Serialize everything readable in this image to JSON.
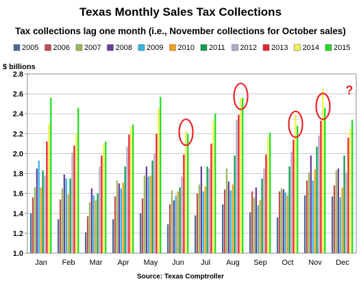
{
  "title": "Texas Monthly Sales Tax Collections",
  "subtitle": "Tax collections lag one month (i.e., November collections for October sales)",
  "source": "Source: Texas Comptroller",
  "ylabel": "$ billions",
  "annotation_mark": "?",
  "chart_data": {
    "type": "bar",
    "title": "Texas Monthly Sales Tax Collections",
    "subtitle": "Tax collections lag one month (i.e., November collections for October sales)",
    "ylabel": "$ billions",
    "xlabel": "",
    "ylim": [
      1.0,
      2.8
    ],
    "yticks": [
      "1.0",
      "1.2",
      "1.4",
      "1.6",
      "1.8",
      "2.0",
      "2.2",
      "2.4",
      "2.6",
      "2.8"
    ],
    "grid": true,
    "legend_placement": "top",
    "categories": [
      "Jan",
      "Feb",
      "Mar",
      "Apr",
      "May",
      "Jun",
      "Jul",
      "Aug",
      "Sep",
      "Oct",
      "Nov",
      "Dec"
    ],
    "series": [
      {
        "name": "2005",
        "color": "#4a6b96",
        "values": [
          1.4,
          1.34,
          1.21,
          1.34,
          1.4,
          1.29,
          1.38,
          1.49,
          1.41,
          1.36,
          1.58,
          1.57
        ]
      },
      {
        "name": "2006",
        "color": "#c0504d",
        "values": [
          1.56,
          1.54,
          1.37,
          1.57,
          1.55,
          1.49,
          1.6,
          1.64,
          1.62,
          1.62,
          1.73,
          1.68
        ]
      },
      {
        "name": "2007",
        "color": "#9bbb59",
        "values": [
          1.66,
          1.65,
          1.51,
          1.73,
          1.78,
          1.63,
          1.69,
          1.85,
          1.56,
          1.65,
          1.81,
          1.83
        ]
      },
      {
        "name": "2008",
        "color": "#6a3d9a",
        "values": [
          1.85,
          1.79,
          1.65,
          1.7,
          1.87,
          1.53,
          1.87,
          1.72,
          1.66,
          1.64,
          1.98,
          1.85
        ]
      },
      {
        "name": "2009",
        "color": "#31b6e0",
        "values": [
          1.93,
          1.75,
          1.58,
          1.65,
          1.77,
          1.58,
          1.62,
          1.63,
          1.48,
          1.61,
          1.73,
          1.56
        ]
      },
      {
        "name": "2010",
        "color": "#f4a018",
        "values": [
          1.66,
          1.59,
          1.53,
          1.71,
          1.78,
          1.62,
          1.67,
          1.69,
          1.53,
          1.58,
          1.84,
          1.66
        ]
      },
      {
        "name": "2011",
        "color": "#11a050",
        "values": [
          1.83,
          1.75,
          1.6,
          1.87,
          1.93,
          1.66,
          1.87,
          1.98,
          1.75,
          1.87,
          2.07,
          1.98
        ]
      },
      {
        "name": "2012",
        "color": "#b6a8cc",
        "values": [
          1.78,
          2.01,
          1.87,
          2.07,
          2.0,
          1.77,
          1.85,
          2.34,
          1.85,
          2.02,
          2.18,
          1.81
        ]
      },
      {
        "name": "2013",
        "color": "#e8242a",
        "values": [
          2.12,
          2.08,
          1.98,
          2.19,
          2.2,
          1.99,
          2.1,
          2.39,
          1.99,
          2.14,
          2.33,
          2.16
        ]
      },
      {
        "name": "2014",
        "color": "#f4f04a",
        "values": [
          2.3,
          2.2,
          2.09,
          2.27,
          2.45,
          2.23,
          2.33,
          2.56,
          2.17,
          2.39,
          2.65,
          2.25
        ]
      },
      {
        "name": "2015",
        "color": "#22dd22",
        "values": [
          2.56,
          2.46,
          2.12,
          2.29,
          2.57,
          2.2,
          2.4,
          2.56,
          2.21,
          2.28,
          2.46,
          2.34
        ]
      }
    ],
    "annotations": [
      {
        "type": "circle",
        "category": "Jun",
        "series": "2015"
      },
      {
        "type": "circle",
        "category": "Aug",
        "series": "2015"
      },
      {
        "type": "circle",
        "category": "Oct",
        "series": "2015"
      },
      {
        "type": "circle",
        "category": "Nov",
        "series": "2015"
      },
      {
        "type": "text",
        "category": "Dec",
        "text": "?"
      }
    ]
  }
}
